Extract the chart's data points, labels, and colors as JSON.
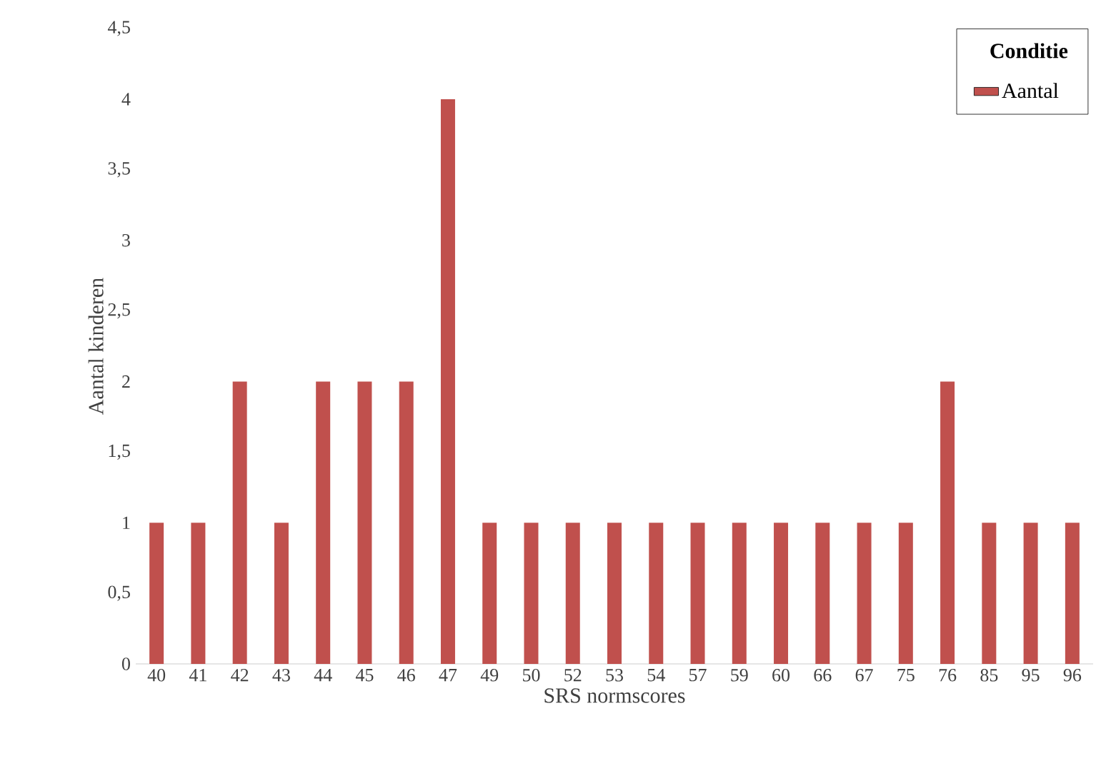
{
  "chart_data": {
    "type": "bar",
    "xlabel": "SRS normscores",
    "ylabel": "Aantal kinderen",
    "legend_title": "Conditie",
    "legend": "top right",
    "categories": [
      "40",
      "41",
      "42",
      "43",
      "44",
      "45",
      "46",
      "47",
      "49",
      "50",
      "52",
      "53",
      "54",
      "57",
      "59",
      "60",
      "66",
      "67",
      "75",
      "76",
      "85",
      "95",
      "96"
    ],
    "series": [
      {
        "name": "Aantal",
        "color": "#c0504d",
        "values": [
          1,
          1,
          2,
          1,
          2,
          2,
          2,
          4,
          1,
          1,
          1,
          1,
          1,
          1,
          1,
          1,
          1,
          1,
          1,
          2,
          1,
          1,
          1
        ]
      }
    ],
    "ylim": [
      0,
      4.5
    ],
    "yticks": [
      0,
      {
        "value": 0.5,
        "label": "0,5"
      },
      1,
      {
        "value": 1.5,
        "label": "1,5"
      },
      2,
      {
        "value": 2.5,
        "label": "2,5"
      },
      3,
      {
        "value": 3.5,
        "label": "3,5"
      },
      4,
      {
        "value": 4.5,
        "label": "4,5"
      }
    ]
  }
}
